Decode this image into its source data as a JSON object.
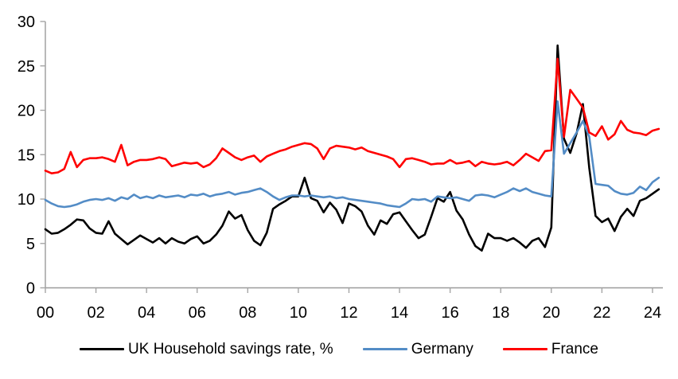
{
  "page": {
    "background": "#ffffff"
  },
  "colors": {
    "axis_line": "#9b9b9b",
    "tick_mark": "#a6a6a6",
    "tick_label": "#000000"
  },
  "chart_data": {
    "type": "line",
    "title": "",
    "grid": false,
    "legend_position": "bottom",
    "x_start": 2000.0,
    "x_step": 0.25,
    "x_axis": {
      "range": [
        2000,
        2024.25
      ],
      "tick_years": [
        2000,
        2002,
        2004,
        2006,
        2008,
        2010,
        2012,
        2014,
        2016,
        2018,
        2020,
        2022,
        2024
      ],
      "tick_labels": [
        "00",
        "02",
        "04",
        "06",
        "08",
        "10",
        "12",
        "14",
        "16",
        "18",
        "20",
        "22",
        "24"
      ]
    },
    "y_axis": {
      "range": [
        0,
        30
      ],
      "ticks": [
        0,
        5,
        10,
        15,
        20,
        25,
        30
      ],
      "tick_labels": [
        "0",
        "5",
        "10",
        "15",
        "20",
        "25",
        "30"
      ]
    },
    "series": [
      {
        "key": "uk",
        "name": "UK Household savings rate, %",
        "color": "#000000",
        "values": [
          6.6,
          6.1,
          6.2,
          6.6,
          7.1,
          7.7,
          7.6,
          6.7,
          6.2,
          6.1,
          7.5,
          6.1,
          5.5,
          4.9,
          5.4,
          5.9,
          5.5,
          5.1,
          5.6,
          5.0,
          5.6,
          5.2,
          5.0,
          5.5,
          5.8,
          5.0,
          5.3,
          6.0,
          7.0,
          8.6,
          7.8,
          8.2,
          6.5,
          5.3,
          4.8,
          6.2,
          8.9,
          9.4,
          9.8,
          10.3,
          10.3,
          12.4,
          10.1,
          9.8,
          8.5,
          9.6,
          8.8,
          7.3,
          9.5,
          9.2,
          8.6,
          7.0,
          6.0,
          7.6,
          7.2,
          8.3,
          8.5,
          7.5,
          6.5,
          5.6,
          6.0,
          8.0,
          10.1,
          9.7,
          10.8,
          8.7,
          7.7,
          6.0,
          4.7,
          4.2,
          6.1,
          5.6,
          5.6,
          5.3,
          5.6,
          5.1,
          4.5,
          5.3,
          5.6,
          4.6,
          6.8,
          27.3,
          16.8,
          15.2,
          17.4,
          20.7,
          13.5,
          8.1,
          7.4,
          7.8,
          6.4,
          8.0,
          8.9,
          8.1,
          9.8,
          10.1,
          10.6,
          11.1
        ]
      },
      {
        "key": "germany",
        "name": "Germany",
        "color": "#538cc6",
        "values": [
          9.9,
          9.5,
          9.2,
          9.1,
          9.2,
          9.4,
          9.7,
          9.9,
          10.0,
          9.9,
          10.1,
          9.8,
          10.2,
          10.0,
          10.5,
          10.1,
          10.3,
          10.1,
          10.4,
          10.2,
          10.3,
          10.4,
          10.2,
          10.5,
          10.4,
          10.6,
          10.3,
          10.5,
          10.6,
          10.8,
          10.5,
          10.7,
          10.8,
          11.0,
          11.2,
          10.8,
          10.3,
          9.9,
          10.2,
          10.4,
          10.4,
          10.3,
          10.4,
          10.3,
          10.2,
          10.3,
          10.1,
          10.2,
          10.0,
          9.9,
          9.8,
          9.7,
          9.6,
          9.5,
          9.3,
          9.2,
          9.1,
          9.5,
          10.0,
          9.9,
          10.0,
          9.7,
          10.3,
          10.2,
          10.1,
          10.2,
          10.0,
          9.8,
          10.4,
          10.5,
          10.4,
          10.2,
          10.5,
          10.8,
          11.2,
          10.9,
          11.2,
          10.8,
          10.6,
          10.4,
          10.3,
          21.0,
          15.1,
          16.3,
          17.5,
          18.8,
          17.0,
          11.7,
          11.6,
          11.5,
          10.9,
          10.6,
          10.5,
          10.7,
          11.4,
          11.0,
          11.9,
          12.4
        ]
      },
      {
        "key": "france",
        "name": "France",
        "color": "#ff0000",
        "values": [
          13.2,
          12.9,
          13.0,
          13.4,
          15.3,
          13.6,
          14.4,
          14.6,
          14.6,
          14.7,
          14.5,
          14.2,
          16.1,
          13.8,
          14.2,
          14.4,
          14.4,
          14.5,
          14.7,
          14.5,
          13.7,
          13.9,
          14.1,
          14.0,
          14.1,
          13.6,
          13.9,
          14.6,
          15.7,
          15.2,
          14.7,
          14.4,
          14.7,
          14.9,
          14.2,
          14.8,
          15.1,
          15.4,
          15.6,
          15.9,
          16.1,
          16.3,
          16.2,
          15.7,
          14.5,
          15.7,
          16.0,
          15.9,
          15.8,
          15.6,
          15.8,
          15.4,
          15.2,
          15.0,
          14.8,
          14.5,
          13.6,
          14.5,
          14.6,
          14.4,
          14.2,
          13.9,
          14.0,
          14.0,
          14.4,
          14.0,
          14.1,
          14.3,
          13.7,
          14.2,
          14.0,
          13.9,
          14.0,
          14.2,
          13.8,
          14.4,
          15.1,
          14.7,
          14.3,
          15.4,
          15.5,
          25.8,
          17.0,
          22.3,
          21.3,
          20.3,
          17.5,
          17.1,
          18.2,
          16.7,
          17.3,
          18.8,
          17.8,
          17.5,
          17.4,
          17.2,
          17.7,
          17.9
        ]
      }
    ]
  }
}
